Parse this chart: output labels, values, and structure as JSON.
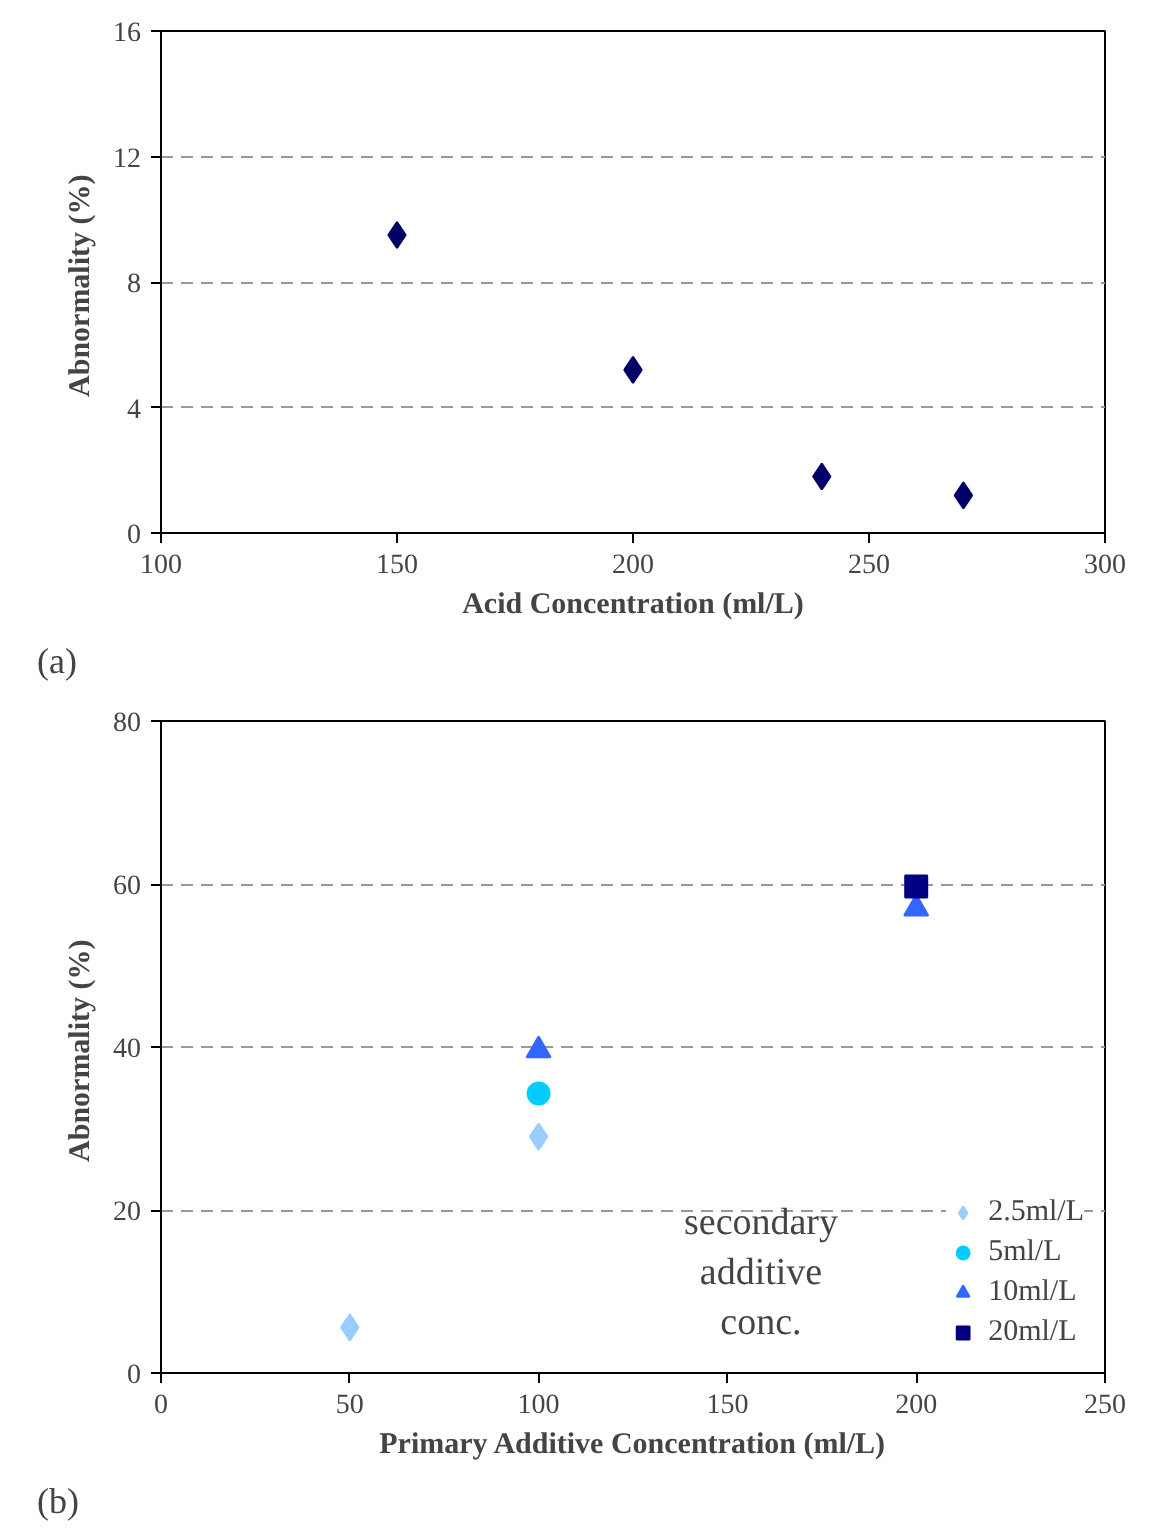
{
  "chart_data": [
    {
      "type": "scatter",
      "xlabel": "Acid Concentration (ml/L)",
      "ylabel": "Abnormality  (%)",
      "xlim": [
        100,
        300
      ],
      "xticks": [
        100,
        150,
        200,
        250,
        300
      ],
      "ylim": [
        0,
        16
      ],
      "yticks": [
        0,
        4,
        8,
        12,
        16
      ],
      "grid": "y",
      "marker": "diamond",
      "annotations": [
        "(a)"
      ],
      "series": [
        {
          "color": "#000066",
          "x": [
            150,
            200,
            240,
            270
          ],
          "values": [
            9.5,
            5.2,
            1.8,
            1.2
          ]
        }
      ]
    },
    {
      "type": "scatter",
      "xlabel": "Primary Additive Concentration (ml/L)",
      "ylabel": "Abnormality  (%)",
      "xlim": [
        0,
        250
      ],
      "xticks": [
        0,
        50,
        100,
        150,
        200,
        250
      ],
      "ylim": [
        0,
        80
      ],
      "yticks": [
        0,
        20,
        40,
        60,
        80
      ],
      "grid": "y",
      "legend": "bottom right",
      "annotations": [
        "(b)",
        "secondary additive conc."
      ],
      "series": [
        {
          "name": "2.5ml/L",
          "color": "#99ccff",
          "marker": "diamond",
          "x": [
            50,
            100
          ],
          "values": [
            5.6,
            29
          ]
        },
        {
          "name": "5ml/L",
          "color": "#00ccff",
          "marker": "circle",
          "x": [
            100
          ],
          "values": [
            34.3
          ]
        },
        {
          "name": "10ml/L",
          "color": "#3366ff",
          "marker": "triangle",
          "x": [
            100,
            200
          ],
          "values": [
            39.6,
            57
          ]
        },
        {
          "name": "20ml/L",
          "color": "#000080",
          "marker": "square",
          "x": [
            200
          ],
          "values": [
            59.7
          ]
        }
      ]
    }
  ]
}
